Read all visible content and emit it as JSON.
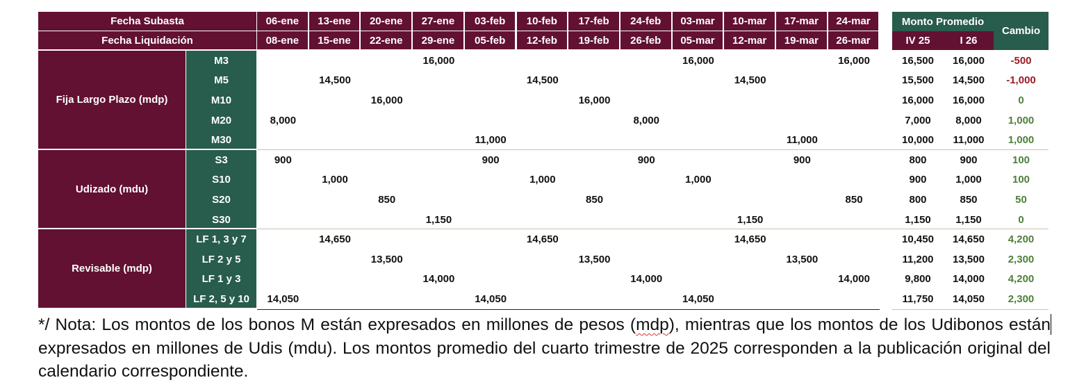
{
  "header": {
    "auction_date_label": "Fecha Subasta",
    "settlement_date_label": "Fecha Liquidación",
    "auction_dates": [
      "06-ene",
      "13-ene",
      "20-ene",
      "27-ene",
      "03-feb",
      "10-feb",
      "17-feb",
      "24-feb",
      "03-mar",
      "10-mar",
      "17-mar",
      "24-mar"
    ],
    "settlement_dates": [
      "08-ene",
      "15-ene",
      "22-ene",
      "29-ene",
      "05-feb",
      "12-feb",
      "19-feb",
      "26-feb",
      "05-mar",
      "12-mar",
      "19-mar",
      "26-mar"
    ],
    "avg_amount_label": "Monto Promedio",
    "period_prev_label": "IV 25",
    "period_curr_label": "I 26",
    "change_label": "Cambio"
  },
  "groups": [
    {
      "label": "Fija Largo Plazo (mdp)",
      "rows": [
        {
          "instrument": "M3",
          "values": [
            "",
            "",
            "",
            "16,000",
            "",
            "",
            "",
            "",
            "16,000",
            "",
            "",
            "16,000"
          ],
          "prev": "16,500",
          "curr": "16,000",
          "change": "-500",
          "change_sign": "neg"
        },
        {
          "instrument": "M5",
          "values": [
            "",
            "14,500",
            "",
            "",
            "",
            "14,500",
            "",
            "",
            "",
            "14,500",
            "",
            ""
          ],
          "prev": "15,500",
          "curr": "14,500",
          "change": "-1,000",
          "change_sign": "neg"
        },
        {
          "instrument": "M10",
          "values": [
            "",
            "",
            "16,000",
            "",
            "",
            "",
            "16,000",
            "",
            "",
            "",
            "",
            ""
          ],
          "prev": "16,000",
          "curr": "16,000",
          "change": "0",
          "change_sign": "pos"
        },
        {
          "instrument": "M20",
          "values": [
            "8,000",
            "",
            "",
            "",
            "",
            "",
            "",
            "8,000",
            "",
            "",
            "",
            ""
          ],
          "prev": "7,000",
          "curr": "8,000",
          "change": "1,000",
          "change_sign": "pos"
        },
        {
          "instrument": "M30",
          "values": [
            "",
            "",
            "",
            "",
            "11,000",
            "",
            "",
            "",
            "",
            "",
            "11,000",
            ""
          ],
          "prev": "10,000",
          "curr": "11,000",
          "change": "1,000",
          "change_sign": "pos"
        }
      ]
    },
    {
      "label": "Udizado  (mdu)",
      "rows": [
        {
          "instrument": "S3",
          "values": [
            "900",
            "",
            "",
            "",
            "900",
            "",
            "",
            "900",
            "",
            "",
            "900",
            ""
          ],
          "prev": "800",
          "curr": "900",
          "change": "100",
          "change_sign": "pos"
        },
        {
          "instrument": "S10",
          "values": [
            "",
            "1,000",
            "",
            "",
            "",
            "1,000",
            "",
            "",
            "1,000",
            "",
            "",
            ""
          ],
          "prev": "900",
          "curr": "1,000",
          "change": "100",
          "change_sign": "pos"
        },
        {
          "instrument": "S20",
          "values": [
            "",
            "",
            "850",
            "",
            "",
            "",
            "850",
            "",
            "",
            "",
            "",
            "850"
          ],
          "prev": "800",
          "curr": "850",
          "change": "50",
          "change_sign": "pos"
        },
        {
          "instrument": "S30",
          "values": [
            "",
            "",
            "",
            "1,150",
            "",
            "",
            "",
            "",
            "",
            "1,150",
            "",
            ""
          ],
          "prev": "1,150",
          "curr": "1,150",
          "change": "0",
          "change_sign": "pos"
        }
      ]
    },
    {
      "label": "Revisable  (mdp)",
      "rows": [
        {
          "instrument": "LF 1, 3 y 7",
          "values": [
            "",
            "14,650",
            "",
            "",
            "",
            "14,650",
            "",
            "",
            "",
            "14,650",
            "",
            ""
          ],
          "prev": "10,450",
          "curr": "14,650",
          "change": "4,200",
          "change_sign": "pos"
        },
        {
          "instrument": "LF 2 y 5",
          "values": [
            "",
            "",
            "13,500",
            "",
            "",
            "",
            "13,500",
            "",
            "",
            "",
            "13,500",
            ""
          ],
          "prev": "11,200",
          "curr": "13,500",
          "change": "2,300",
          "change_sign": "pos"
        },
        {
          "instrument": "LF 1 y 3",
          "values": [
            "",
            "",
            "",
            "14,000",
            "",
            "",
            "",
            "14,000",
            "",
            "",
            "",
            "14,000"
          ],
          "prev": "9,800",
          "curr": "14,000",
          "change": "4,200",
          "change_sign": "pos"
        },
        {
          "instrument": "LF 2, 5 y 10",
          "values": [
            "14,050",
            "",
            "",
            "",
            "14,050",
            "",
            "",
            "",
            "14,050",
            "",
            "",
            ""
          ],
          "prev": "11,750",
          "curr": "14,050",
          "change": "2,300",
          "change_sign": "pos"
        }
      ]
    }
  ],
  "note": {
    "part1": "*/ Nota: Los montos de los bonos M están expresados en millones de pesos (",
    "flagged_word": "mdp",
    "part2": "), mientras que los montos de los Udibonos están expresados en millones de Udis (mdu).  Los montos promedio del cuarto trimestre de 2025 corresponden a la publicación original del calendario correspondiente."
  },
  "colors": {
    "maroon": "#621132",
    "green": "#285c4d",
    "negative": "#9b1b24",
    "positive": "#4f7f3a"
  }
}
